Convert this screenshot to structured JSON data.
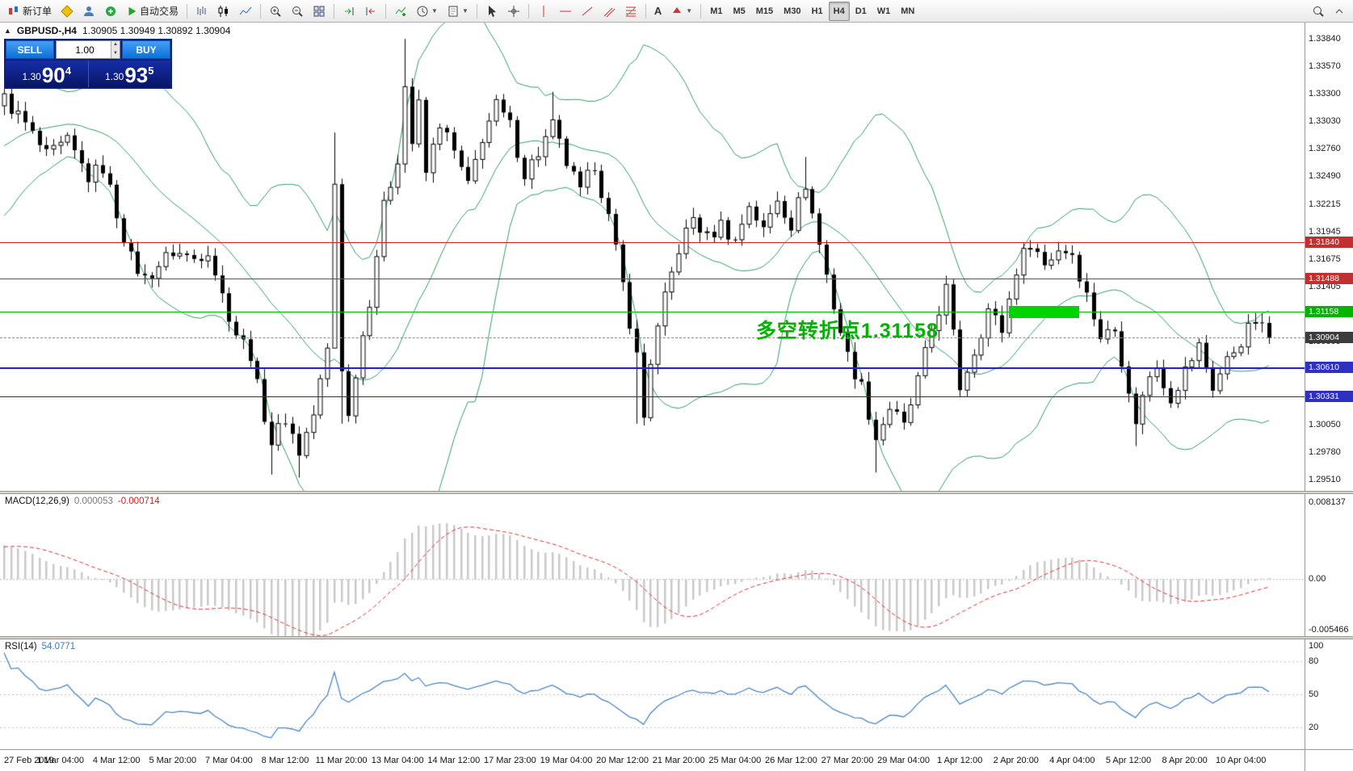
{
  "toolbar": {
    "new_order_label": "新订单",
    "autotrading_label": "自动交易",
    "text_tool_label": "A",
    "timeframes": [
      "M1",
      "M5",
      "M15",
      "M30",
      "H1",
      "H4",
      "D1",
      "W1",
      "MN"
    ],
    "active_timeframe": "H4"
  },
  "chart": {
    "symbol": "GBPUSD-,H4",
    "ohlc": "1.30905 1.30949 1.30892 1.30904"
  },
  "one_click": {
    "sell_label": "SELL",
    "buy_label": "BUY",
    "volume": "1.00",
    "bid_small": "1.30",
    "bid_big": "90",
    "bid_sup": "4",
    "ask_small": "1.30",
    "ask_big": "93",
    "ask_sup": "5"
  },
  "annotation": {
    "text": "多空转折点1.31158",
    "color": "#00b300",
    "anchor_index": 107,
    "anchor_price": 1.3113
  },
  "supply_zone": {
    "start_index": 143,
    "end_index": 153,
    "price_top": 1.3122,
    "price_bottom": 1.31095,
    "color": "#00d400"
  },
  "hlines": [
    {
      "name": "resistance-1",
      "price": 1.3184,
      "label": "1.31840",
      "color": "#cc2222",
      "tag_color": "#c03030",
      "line_style": "solid",
      "thickness": 1
    },
    {
      "name": "resistance-2",
      "price": 1.31488,
      "label": "1.31488",
      "color": "#cc2222",
      "tag_color": "#c03030",
      "line_style": "solid",
      "thickness": 1
    },
    {
      "name": "pivot-line",
      "price": 1.31158,
      "label": "1.31158",
      "color": "#00c000",
      "tag_color": "#00b400",
      "line_style": "solid",
      "thickness": 1
    },
    {
      "name": "bid-line",
      "price": 1.30904,
      "label": "1.30904",
      "color": "#909090",
      "tag_color": "#3c3c3c",
      "line_style": "dashed",
      "thickness": 1
    },
    {
      "name": "support-1",
      "price": 1.3061,
      "label": "1.30610",
      "color": "#2222cc",
      "tag_color": "#3030c0",
      "line_style": "solid",
      "thickness": 2
    },
    {
      "name": "support-2",
      "price": 1.30331,
      "label": "1.30331",
      "color": "#2222cc",
      "tag_color": "#3030c0",
      "line_style": "solid",
      "thickness": 1
    }
  ],
  "price_axis": {
    "labels": [
      "1.33840",
      "1.33570",
      "1.33300",
      "1.33030",
      "1.32760",
      "1.32490",
      "1.32215",
      "1.31945",
      "1.31675",
      "1.31405",
      "1.31135",
      "1.30865",
      "1.30595",
      "1.30325",
      "1.30050",
      "1.29780",
      "1.29510"
    ]
  },
  "macd": {
    "name": "MACD(12,26,9)",
    "value_main": "0.000053",
    "value_signal": "-0.000714",
    "axis_top": "0.008137",
    "axis_zero": "0.00",
    "axis_bottom": "-0.005466",
    "scale_max": 0.008137,
    "scale_min": -0.005466,
    "hist_color": "#c9c9c9",
    "signal_color": "#e03030"
  },
  "rsi": {
    "name": "RSI(14)",
    "value": "54.0771",
    "axis_labels": [
      "100",
      "80",
      "50",
      "20"
    ],
    "levels": [
      80,
      50,
      20
    ],
    "line_color": "#4a86c8"
  },
  "time_axis": [
    "27 Feb 2019",
    "1 Mar 04:00",
    "4 Mar 12:00",
    "5 Mar 20:00",
    "7 Mar 04:00",
    "8 Mar 12:00",
    "11 Mar 20:00",
    "13 Mar 04:00",
    "14 Mar 12:00",
    "17 Mar 23:00",
    "19 Mar 04:00",
    "20 Mar 12:00",
    "21 Mar 20:00",
    "25 Mar 04:00",
    "26 Mar 12:00",
    "27 Mar 20:00",
    "29 Mar 04:00",
    "1 Apr 12:00",
    "2 Apr 20:00",
    "4 Apr 04:00",
    "5 Apr 12:00",
    "8 Apr 20:00",
    "10 Apr 04:00"
  ],
  "chart_data": {
    "type": "candlestick",
    "symbol": "GBPUSD",
    "period": "H4",
    "current_bid": 1.30904,
    "current_ask": 1.30935,
    "first_index": -26,
    "last_index": 180,
    "candles_per_label": 8,
    "noise": 0.0016,
    "price_range": {
      "max": 1.34,
      "min": 1.294
    },
    "bollinger": {
      "period": 20,
      "deviation": 2,
      "color": "#2e9e63"
    },
    "macd_params": {
      "fast": 12,
      "slow": 26,
      "signal": 9
    },
    "rsi_period": 14,
    "candle_up_color": "#ffffff",
    "candle_down_color": "#000000",
    "price_path": [
      [
        -26,
        1.3175
      ],
      [
        -6,
        1.3305
      ],
      [
        0,
        1.3325
      ],
      [
        3,
        1.33
      ],
      [
        6,
        1.3268
      ],
      [
        9,
        1.3282
      ],
      [
        12,
        1.3248
      ],
      [
        14,
        1.3258
      ],
      [
        18,
        1.3168
      ],
      [
        20,
        1.3148
      ],
      [
        22,
        1.3162
      ],
      [
        24,
        1.3175
      ],
      [
        27,
        1.3168
      ],
      [
        29,
        1.3178
      ],
      [
        31,
        1.3132
      ],
      [
        33,
        1.3095
      ],
      [
        35,
        1.3075
      ],
      [
        36,
        1.3042
      ],
      [
        38,
        1.2988
      ],
      [
        40,
        1.3012
      ],
      [
        42,
        1.2978
      ],
      [
        44,
        1.3015
      ],
      [
        46,
        1.3078
      ],
      [
        47,
        1.3242
      ],
      [
        48,
        1.3062
      ],
      [
        49,
        1.3012
      ],
      [
        50,
        1.3058
      ],
      [
        52,
        1.3128
      ],
      [
        54,
        1.3218
      ],
      [
        56,
        1.3268
      ],
      [
        57,
        1.3338
      ],
      [
        58,
        1.3282
      ],
      [
        59,
        1.3318
      ],
      [
        60,
        1.3252
      ],
      [
        62,
        1.3302
      ],
      [
        64,
        1.3272
      ],
      [
        66,
        1.3238
      ],
      [
        68,
        1.3288
      ],
      [
        70,
        1.3318
      ],
      [
        72,
        1.3298
      ],
      [
        74,
        1.3252
      ],
      [
        76,
        1.3272
      ],
      [
        78,
        1.3298
      ],
      [
        80,
        1.3262
      ],
      [
        82,
        1.3232
      ],
      [
        84,
        1.3262
      ],
      [
        86,
        1.3208
      ],
      [
        88,
        1.3142
      ],
      [
        90,
        1.3072
      ],
      [
        91,
        1.3012
      ],
      [
        92,
        1.3068
      ],
      [
        94,
        1.3128
      ],
      [
        96,
        1.3178
      ],
      [
        98,
        1.3208
      ],
      [
        100,
        1.3188
      ],
      [
        102,
        1.3202
      ],
      [
        104,
        1.3185
      ],
      [
        106,
        1.3222
      ],
      [
        108,
        1.3195
      ],
      [
        110,
        1.3228
      ],
      [
        112,
        1.3202
      ],
      [
        114,
        1.3242
      ],
      [
        116,
        1.3182
      ],
      [
        118,
        1.3122
      ],
      [
        120,
        1.3072
      ],
      [
        122,
        1.3042
      ],
      [
        124,
        1.2992
      ],
      [
        126,
        1.3022
      ],
      [
        128,
        1.3002
      ],
      [
        130,
        1.3048
      ],
      [
        132,
        1.3098
      ],
      [
        134,
        1.3138
      ],
      [
        135,
        1.3092
      ],
      [
        136,
        1.3042
      ],
      [
        138,
        1.3078
      ],
      [
        140,
        1.3118
      ],
      [
        142,
        1.3098
      ],
      [
        144,
        1.3158
      ],
      [
        146,
        1.3186
      ],
      [
        148,
        1.3162
      ],
      [
        150,
        1.3178
      ],
      [
        152,
        1.3174
      ],
      [
        154,
        1.3132
      ],
      [
        156,
        1.3092
      ],
      [
        158,
        1.3098
      ],
      [
        160,
        1.3042
      ],
      [
        161,
        1.3002
      ],
      [
        162,
        1.3038
      ],
      [
        164,
        1.3062
      ],
      [
        166,
        1.3032
      ],
      [
        168,
        1.3058
      ],
      [
        170,
        1.3082
      ],
      [
        172,
        1.3042
      ],
      [
        174,
        1.3068
      ],
      [
        176,
        1.3088
      ],
      [
        178,
        1.3108
      ],
      [
        180,
        1.30904
      ]
    ],
    "overrides": {
      "38": {
        "l": 1.2956
      },
      "42": {
        "l": 1.2953
      },
      "47": {
        "h": 1.3292,
        "l": 1.315
      },
      "48": {
        "l": 1.3006
      },
      "57": {
        "h": 1.3384
      },
      "78": {
        "h": 1.3332
      },
      "90": {
        "l": 1.3006
      },
      "114": {
        "h": 1.3268
      },
      "124": {
        "l": 1.2958
      },
      "161": {
        "l": 1.2984
      }
    }
  }
}
